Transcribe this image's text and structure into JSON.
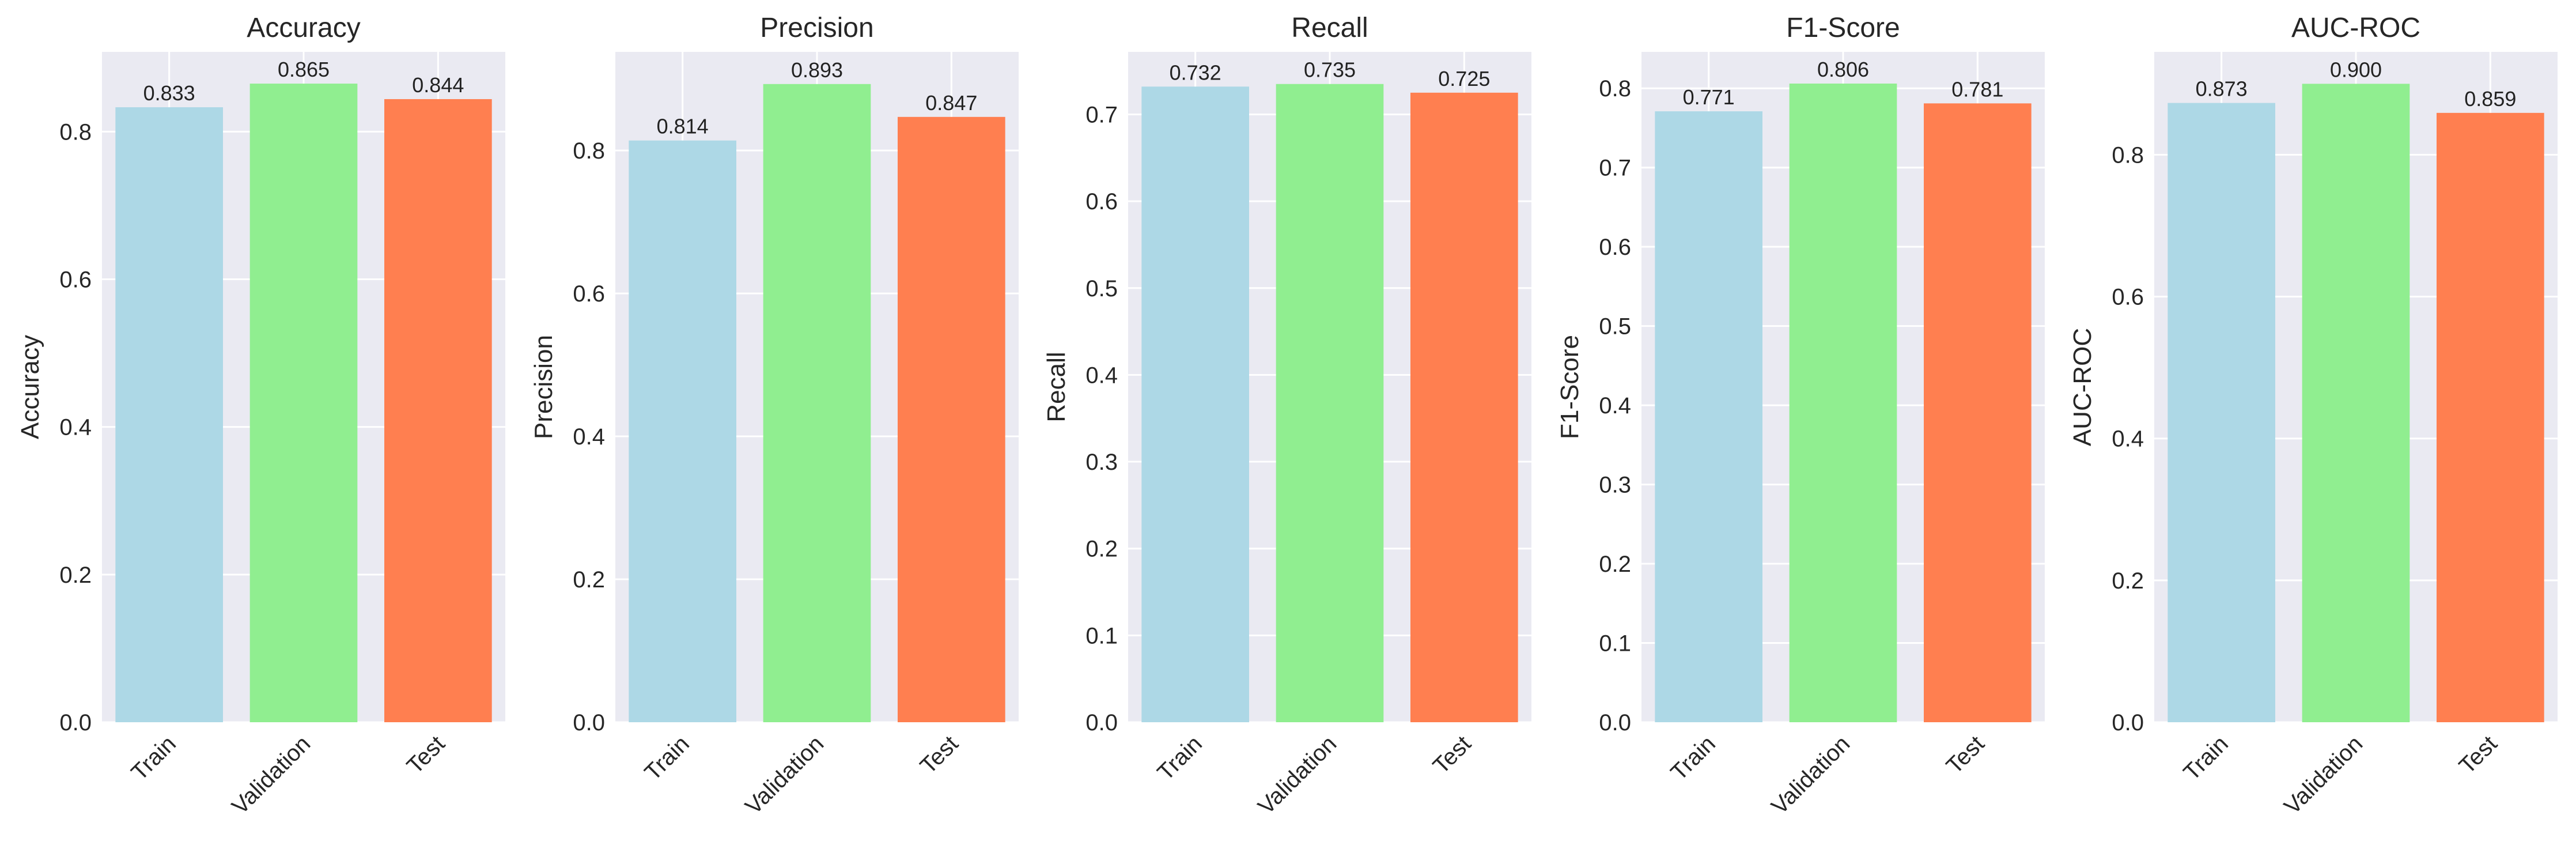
{
  "figure": {
    "bar_colors": [
      "#add8e6",
      "#90ee90",
      "#ff7f50"
    ],
    "plot_background": "#eaeaf2",
    "grid_color": "#ffffff"
  },
  "chart_data": [
    {
      "type": "bar",
      "title": "Accuracy",
      "ylabel": "Accuracy",
      "xlabel": "",
      "categories": [
        "Train",
        "Validation",
        "Test"
      ],
      "values": [
        0.833,
        0.865,
        0.844
      ],
      "value_labels": [
        "0.833",
        "0.865",
        "0.844"
      ],
      "ylim": [
        0,
        0.908
      ],
      "yticks": [
        0.0,
        0.2,
        0.4,
        0.6,
        0.8
      ],
      "ytick_labels": [
        "0.0",
        "0.2",
        "0.4",
        "0.6",
        "0.8"
      ],
      "grid": true
    },
    {
      "type": "bar",
      "title": "Precision",
      "ylabel": "Precision",
      "xlabel": "",
      "categories": [
        "Train",
        "Validation",
        "Test"
      ],
      "values": [
        0.814,
        0.893,
        0.847
      ],
      "value_labels": [
        "0.814",
        "0.893",
        "0.847"
      ],
      "ylim": [
        0,
        0.938
      ],
      "yticks": [
        0.0,
        0.2,
        0.4,
        0.6,
        0.8
      ],
      "ytick_labels": [
        "0.0",
        "0.2",
        "0.4",
        "0.6",
        "0.8"
      ],
      "grid": true
    },
    {
      "type": "bar",
      "title": "Recall",
      "ylabel": "Recall",
      "xlabel": "",
      "categories": [
        "Train",
        "Validation",
        "Test"
      ],
      "values": [
        0.732,
        0.735,
        0.725
      ],
      "value_labels": [
        "0.732",
        "0.735",
        "0.725"
      ],
      "ylim": [
        0,
        0.772
      ],
      "yticks": [
        0.0,
        0.1,
        0.2,
        0.3,
        0.4,
        0.5,
        0.6,
        0.7
      ],
      "ytick_labels": [
        "0.0",
        "0.1",
        "0.2",
        "0.3",
        "0.4",
        "0.5",
        "0.6",
        "0.7"
      ],
      "grid": true
    },
    {
      "type": "bar",
      "title": "F1-Score",
      "ylabel": "F1-Score",
      "xlabel": "",
      "categories": [
        "Train",
        "Validation",
        "Test"
      ],
      "values": [
        0.771,
        0.806,
        0.781
      ],
      "value_labels": [
        "0.771",
        "0.806",
        "0.781"
      ],
      "ylim": [
        0,
        0.846
      ],
      "yticks": [
        0.0,
        0.1,
        0.2,
        0.3,
        0.4,
        0.5,
        0.6,
        0.7,
        0.8
      ],
      "ytick_labels": [
        "0.0",
        "0.1",
        "0.2",
        "0.3",
        "0.4",
        "0.5",
        "0.6",
        "0.7",
        "0.8"
      ],
      "grid": true
    },
    {
      "type": "bar",
      "title": "AUC-ROC",
      "ylabel": "AUC-ROC",
      "xlabel": "",
      "categories": [
        "Train",
        "Validation",
        "Test"
      ],
      "values": [
        0.873,
        0.9,
        0.859
      ],
      "value_labels": [
        "0.873",
        "0.900",
        "0.859"
      ],
      "ylim": [
        0,
        0.945
      ],
      "yticks": [
        0.0,
        0.2,
        0.4,
        0.6,
        0.8
      ],
      "ytick_labels": [
        "0.0",
        "0.2",
        "0.4",
        "0.6",
        "0.8"
      ],
      "grid": true
    }
  ]
}
